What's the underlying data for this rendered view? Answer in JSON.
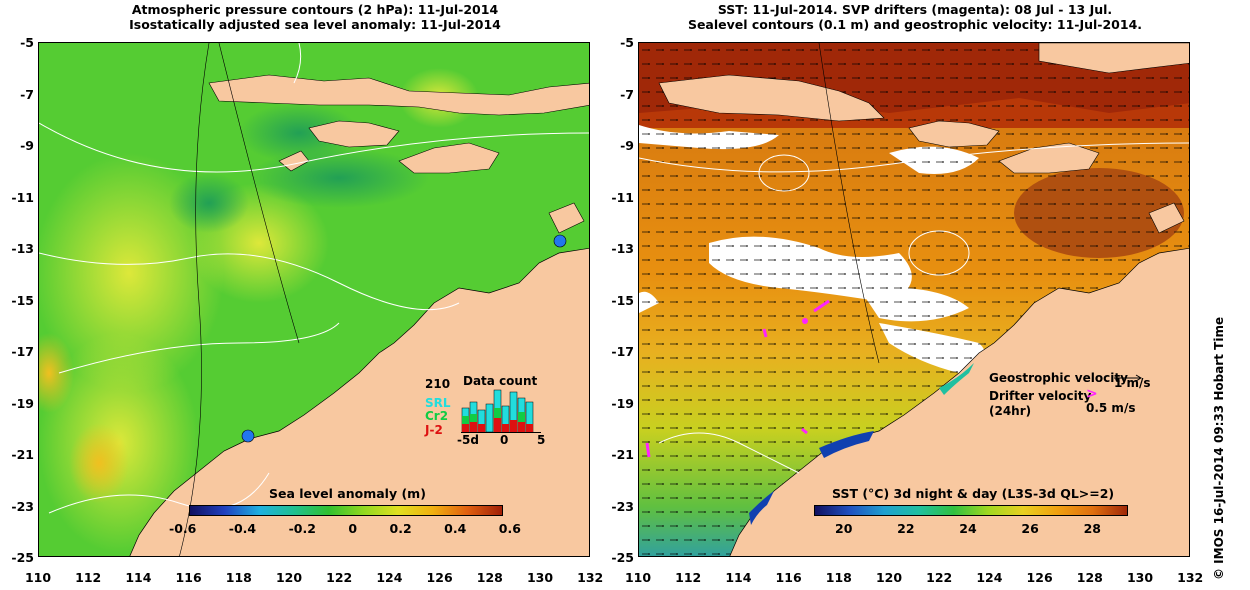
{
  "left_panel": {
    "title_line1": "Atmospheric pressure contours (2 hPa): 11-Jul-2014",
    "title_line2": "Isostatically adjusted sea level anomaly: 11-Jul-2014",
    "colorbar_title": "Sea level anomaly (m)",
    "colorbar_ticks": [
      "-0.6",
      "-0.4",
      "-0.2",
      "0",
      "0.2",
      "0.4",
      "0.6"
    ],
    "inset": {
      "count": "210",
      "title": "Data count",
      "legend": [
        {
          "label": "SRL",
          "color": "#22dddd"
        },
        {
          "label": "Cr2",
          "color": "#11cc44"
        },
        {
          "label": "J-2",
          "color": "#dd1111"
        }
      ],
      "xticks": [
        "-5d",
        "0",
        "5"
      ]
    }
  },
  "right_panel": {
    "title_line1": "SST: 11-Jul-2014. SVP drifters (magenta): 08 Jul - 13 Jul.",
    "title_line2": "Sealevel contours (0.1 m) and geostrophic velocity: 11-Jul-2014.",
    "colorbar_title": "SST (°C) 3d night & day (L3S-3d QL>=2)",
    "colorbar_ticks": [
      "20",
      "22",
      "24",
      "26",
      "28"
    ],
    "legend_geo": "Geostrophic velocity",
    "legend_geo_unit": "1 m/s",
    "legend_drifter_line1": "Drifter velocity",
    "legend_drifter_line2": "(24hr)",
    "legend_drifter_unit": "0.5 m/s"
  },
  "axes": {
    "y_ticks": [
      "-5",
      "-7",
      "-9",
      "-11",
      "-13",
      "-15",
      "-17",
      "-19",
      "-21",
      "-23",
      "-25"
    ],
    "x_ticks": [
      "110",
      "112",
      "114",
      "116",
      "118",
      "120",
      "122",
      "124",
      "126",
      "128",
      "130",
      "132"
    ]
  },
  "credit": "© IMOS 16-Jul-2014 09:33 Hobart Time",
  "colors": {
    "land": "#f8c8a0",
    "sla_ocean": "#55cc33",
    "sst_warm": "#e08a10",
    "sst_hot": "#a02808",
    "cloud": "#ffffff",
    "drifter": "#ff22ff"
  }
}
